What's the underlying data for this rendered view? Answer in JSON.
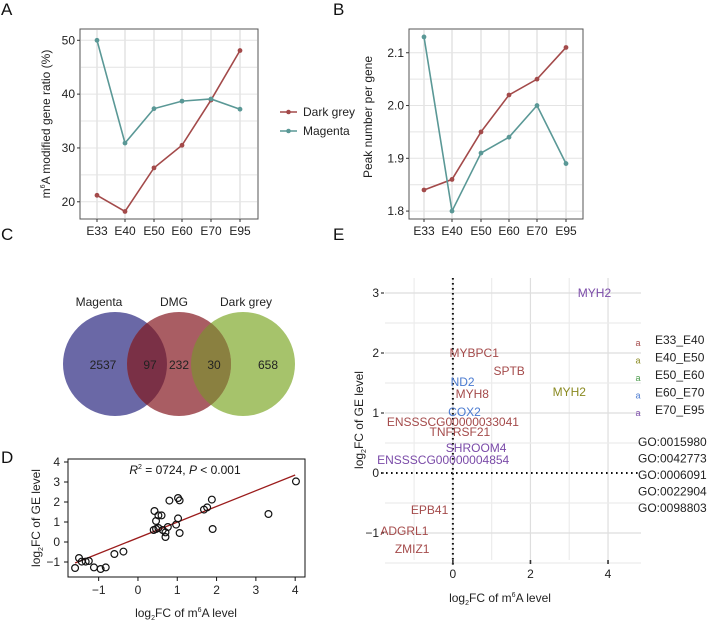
{
  "panels": {
    "A": "A",
    "B": "B",
    "C": "C",
    "D": "D",
    "E": "E"
  },
  "colors": {
    "dark_grey_series": "#a34a4a",
    "magenta_series": "#5a9896",
    "venn_magenta": "#6a68a6",
    "venn_dmg": "#a95d63",
    "venn_dark_grey": "#a6c36b",
    "venn_magenta_dmg": "#7a3046",
    "venn_dmg_darkgrey": "#8a8040",
    "regression_line": "#9b1c1c",
    "E_E33_E40": "#a44a4a",
    "E_E40_E50": "#8a8a20",
    "E_E50_E60": "#4a9a4a",
    "E_E60_E70": "#4a7ad0",
    "E_E70_E95": "#7a4aa8"
  },
  "chart_data": [
    {
      "id": "A",
      "type": "line",
      "title": "",
      "xlabel": "",
      "ylabel_sup": "6",
      "ylabel_pre": "m",
      "ylabel_post": "A modified gene ratio (%)",
      "categories": [
        "E33",
        "E40",
        "E50",
        "E60",
        "E70",
        "E95"
      ],
      "yticks": [
        "20",
        "30",
        "40",
        "50"
      ],
      "ytick_values": [
        20,
        30,
        40,
        50
      ],
      "ylim": [
        16.8,
        52.1
      ],
      "grid": true,
      "series": [
        {
          "name": "Dark grey",
          "color_key": "dark_grey_series",
          "values": [
            21.2,
            18.2,
            26.3,
            30.5,
            38.9,
            48.1
          ]
        },
        {
          "name": "Magenta",
          "color_key": "magenta_series",
          "values": [
            50.0,
            30.9,
            37.3,
            38.7,
            39.1,
            37.2
          ]
        }
      ],
      "legend": {
        "placement": "right",
        "entries": [
          "Dark grey",
          "Magenta"
        ]
      }
    },
    {
      "id": "B",
      "type": "line",
      "title": "",
      "xlabel": "",
      "ylabel": "Peak number per gene",
      "categories": [
        "E33",
        "E40",
        "E50",
        "E60",
        "E70",
        "E95"
      ],
      "yticks": [
        "1.8",
        "1.9",
        "2.0",
        "2.1"
      ],
      "ytick_values": [
        1.8,
        1.9,
        2.0,
        2.1
      ],
      "ylim": [
        1.785,
        2.145
      ],
      "grid": true,
      "series": [
        {
          "name": "Dark grey",
          "color_key": "dark_grey_series",
          "values": [
            1.84,
            1.86,
            1.95,
            2.02,
            2.05,
            2.11
          ]
        },
        {
          "name": "Magenta",
          "color_key": "magenta_series",
          "values": [
            2.13,
            1.8,
            1.91,
            1.94,
            2.0,
            1.89
          ]
        }
      ]
    },
    {
      "id": "C",
      "type": "venn",
      "sets": [
        "Magenta",
        "DMG",
        "Dark grey"
      ],
      "regions": {
        "magenta_only": "2537",
        "magenta_dmg": "97",
        "dmg_only": "232",
        "dmg_darkgrey": "30",
        "darkgrey_only": "658"
      }
    },
    {
      "id": "D",
      "type": "scatter",
      "annotation_r2_label": "R",
      "annotation_r2_sup": "2",
      "annotation_r2_rest": " = 0724, ",
      "annotation_p_label": "P",
      "annotation_p_rest": " < 0.001",
      "xlabel_pre": "log",
      "xlabel_sub": "2",
      "xlabel_mid": "FC of m",
      "xlabel_sup": "6",
      "xlabel_post": "A level",
      "ylabel_pre": "log",
      "ylabel_sub": "2",
      "ylabel_post": "FC of GE level",
      "xticks": [
        "−1",
        "0",
        "1",
        "2",
        "3",
        "4"
      ],
      "xtick_values": [
        -1,
        0,
        1,
        2,
        3,
        4
      ],
      "yticks": [
        "−1",
        "0",
        "1",
        "2",
        "3",
        "4"
      ],
      "ytick_values": [
        -1,
        0,
        1,
        2,
        3,
        4
      ],
      "xlim": [
        -1.78,
        4.25
      ],
      "ylim": [
        -1.75,
        4.15
      ],
      "grid": false,
      "fit_line": {
        "x": [
          -1.6,
          4.0
        ],
        "y": [
          -1.05,
          3.35
        ]
      },
      "points": [
        [
          -1.6,
          -1.3
        ],
        [
          -1.5,
          -0.8
        ],
        [
          -1.43,
          -0.98
        ],
        [
          -1.33,
          -0.98
        ],
        [
          -1.25,
          -0.95
        ],
        [
          -1.12,
          -1.27
        ],
        [
          -0.95,
          -1.35
        ],
        [
          -0.82,
          -1.27
        ],
        [
          -0.6,
          -0.6
        ],
        [
          -0.37,
          -0.48
        ],
        [
          0.42,
          1.55
        ],
        [
          0.46,
          1.05
        ],
        [
          0.52,
          1.33
        ],
        [
          0.6,
          1.33
        ],
        [
          0.4,
          0.6
        ],
        [
          0.46,
          0.65
        ],
        [
          0.52,
          0.7
        ],
        [
          0.63,
          0.6
        ],
        [
          0.7,
          0.48
        ],
        [
          0.7,
          0.25
        ],
        [
          0.76,
          0.75
        ],
        [
          0.8,
          2.07
        ],
        [
          0.97,
          0.87
        ],
        [
          1.02,
          2.2
        ],
        [
          1.06,
          2.08
        ],
        [
          1.02,
          1.18
        ],
        [
          1.06,
          0.45
        ],
        [
          1.68,
          1.62
        ],
        [
          1.76,
          1.73
        ],
        [
          1.88,
          2.12
        ],
        [
          1.9,
          0.65
        ],
        [
          3.32,
          1.4
        ],
        [
          4.02,
          3.03
        ]
      ]
    },
    {
      "id": "E",
      "type": "scatter",
      "xlabel_pre": "log",
      "xlabel_sub": "2",
      "xlabel_mid": "FC of m",
      "xlabel_sup": "6",
      "xlabel_post": "A level",
      "ylabel_pre": "log",
      "ylabel_sub": "2",
      "ylabel_post": "FC of GE level",
      "xticks": [
        "0",
        "2",
        "4"
      ],
      "xtick_values": [
        0,
        2,
        4
      ],
      "yticks": [
        "−1",
        "0",
        "1",
        "2",
        "3"
      ],
      "ytick_values": [
        -1,
        0,
        1,
        2,
        3
      ],
      "xlim": [
        -1.75,
        4.85
      ],
      "ylim": [
        -1.45,
        3.25
      ],
      "grid": true,
      "reference_lines": {
        "x": 0,
        "y": 0,
        "style": "dotted"
      },
      "labels": [
        {
          "text": "MYH2",
          "x": 3.65,
          "y": 3.0,
          "group": "E70_E95"
        },
        {
          "text": "MYBPC1",
          "x": 0.55,
          "y": 2.0,
          "group": "E33_E40"
        },
        {
          "text": "SPTB",
          "x": 1.45,
          "y": 1.7,
          "group": "E33_E40"
        },
        {
          "text": "ND2",
          "x": 0.25,
          "y": 1.52,
          "group": "E60_E70"
        },
        {
          "text": "MYH8",
          "x": 0.5,
          "y": 1.32,
          "group": "E33_E40"
        },
        {
          "text": "MYH2",
          "x": 3.0,
          "y": 1.35,
          "group": "E40_E50"
        },
        {
          "text": "COX2",
          "x": 0.3,
          "y": 1.02,
          "group": "E60_E70"
        },
        {
          "text": "ENSSSCG00000033041",
          "x": 0.0,
          "y": 0.85,
          "group": "E33_E40"
        },
        {
          "text": "TNFRSF21",
          "x": 0.18,
          "y": 0.68,
          "group": "E33_E40"
        },
        {
          "text": "SHROOM4",
          "x": 0.6,
          "y": 0.42,
          "group": "E70_E95"
        },
        {
          "text": "ENSSSCG00000004854",
          "x": -0.25,
          "y": 0.22,
          "group": "E70_E95"
        },
        {
          "text": "EPB41",
          "x": -0.6,
          "y": -0.62,
          "group": "E33_E40"
        },
        {
          "text": "ADGRL1",
          "x": -1.25,
          "y": -0.97,
          "group": "E33_E40"
        },
        {
          "text": "ZMIZ1",
          "x": -1.05,
          "y": -1.27,
          "group": "E33_E40"
        }
      ],
      "legend": {
        "placement": "right",
        "entries": [
          {
            "label": "E33_E40",
            "color_key": "E_E33_E40"
          },
          {
            "label": "E40_E50",
            "color_key": "E_E40_E50"
          },
          {
            "label": "E50_E60",
            "color_key": "E_E50_E60"
          },
          {
            "label": "E60_E70",
            "color_key": "E_E60_E70"
          },
          {
            "label": "E70_E95",
            "color_key": "E_E70_E95"
          }
        ],
        "go_terms": [
          "GO:0015980",
          "GO:0042773",
          "GO:0006091",
          "GO:0022904",
          "GO:0098803"
        ]
      }
    }
  ]
}
